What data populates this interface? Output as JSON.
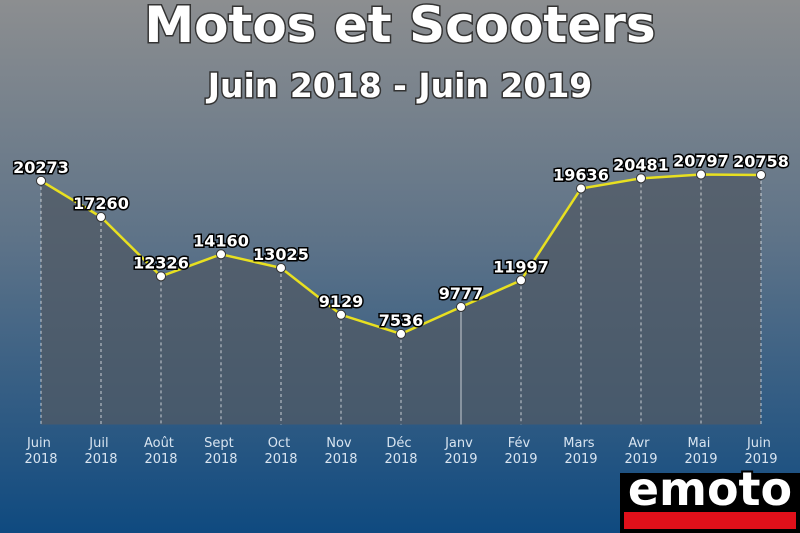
{
  "chart_data": {
    "type": "line",
    "title": "Motos et Scooters",
    "subtitle": "Juin 2018 - Juin 2019",
    "categories": [
      "Juin 2018",
      "Juil 2018",
      "Août 2018",
      "Sept 2018",
      "Oct 2018",
      "Nov 2018",
      "Déc 2018",
      "Janv 2019",
      "Fév 2019",
      "Mars 2019",
      "Avr 2019",
      "Mai 2019",
      "Juin 2019"
    ],
    "values": [
      20273,
      17260,
      12326,
      14160,
      13025,
      9129,
      7536,
      9777,
      11997,
      19636,
      20481,
      20797,
      20758
    ],
    "color": "#e8e020",
    "ylim": [
      0,
      25000
    ]
  },
  "logo": "emoto"
}
